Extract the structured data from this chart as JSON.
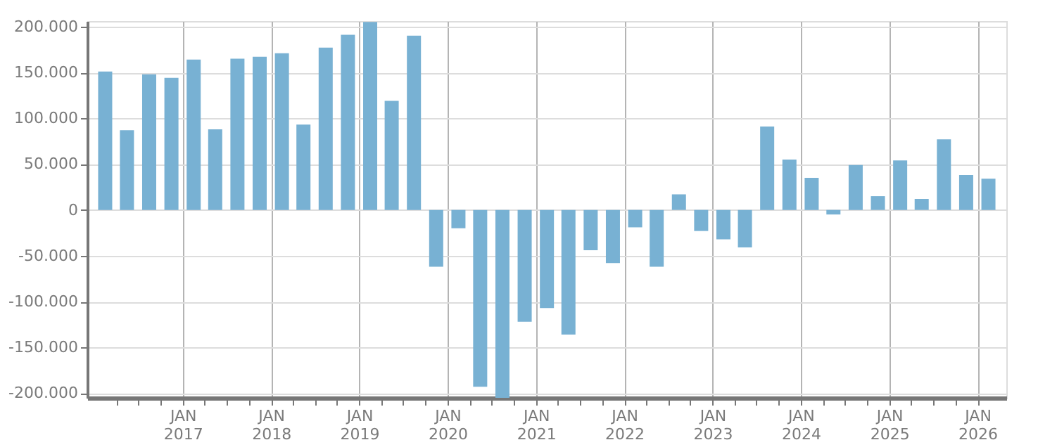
{
  "chart_data": {
    "type": "bar",
    "x": [
      "2016-02-15",
      "2016-05-15",
      "2016-08-15",
      "2016-11-15",
      "2017-02-15",
      "2017-05-15",
      "2017-08-15",
      "2017-11-15",
      "2018-02-15",
      "2018-05-15",
      "2018-08-15",
      "2018-11-15",
      "2019-02-15",
      "2019-05-15",
      "2019-08-15",
      "2019-11-15",
      "2020-02-15",
      "2020-05-15",
      "2020-08-15",
      "2020-11-15",
      "2021-02-15",
      "2021-05-15",
      "2021-08-15",
      "2021-11-15",
      "2022-02-15",
      "2022-05-15",
      "2022-08-15",
      "2022-11-15",
      "2023-02-15",
      "2023-05-15",
      "2023-08-15",
      "2023-11-15",
      "2024-02-15",
      "2024-05-15",
      "2024-08-15",
      "2024-11-15",
      "2025-02-15",
      "2025-05-15",
      "2025-08-15",
      "2025-11-15",
      "2026-02-15"
    ],
    "series": [
      {
        "color": "#78b1d3",
        "values": [
          151000,
          87000,
          148000,
          144000,
          164000,
          88000,
          165000,
          167000,
          171000,
          93000,
          177000,
          191000,
          205000,
          119000,
          190000,
          -62000,
          -20000,
          -193000,
          -205000,
          -122000,
          -107000,
          -136000,
          -44000,
          -58000,
          -19000,
          -62000,
          17000,
          -23000,
          -32000,
          -41000,
          91000,
          55000,
          35000,
          -5000,
          49000,
          15000,
          54000,
          12000,
          77000,
          38000,
          34000
        ]
      }
    ],
    "xlim": [
      "2016-01-01",
      "2026-04-01"
    ],
    "xticks": [
      {
        "value": "2016-04-01",
        "label": null
      },
      {
        "value": "2016-07-01",
        "label": null
      },
      {
        "value": "2016-10-01",
        "label": null
      },
      {
        "value": "2017-01-01",
        "label": "JAN 2017"
      },
      {
        "value": "2017-04-01",
        "label": null
      },
      {
        "value": "2017-07-01",
        "label": null
      },
      {
        "value": "2017-10-01",
        "label": null
      },
      {
        "value": "2018-01-01",
        "label": "JAN 2018"
      },
      {
        "value": "2018-04-01",
        "label": null
      },
      {
        "value": "2018-07-01",
        "label": null
      },
      {
        "value": "2018-10-01",
        "label": null
      },
      {
        "value": "2019-01-01",
        "label": "JAN 2019"
      },
      {
        "value": "2019-04-01",
        "label": null
      },
      {
        "value": "2019-07-01",
        "label": null
      },
      {
        "value": "2019-10-01",
        "label": null
      },
      {
        "value": "2020-01-01",
        "label": "JAN 2020"
      },
      {
        "value": "2020-04-01",
        "label": null
      },
      {
        "value": "2020-07-01",
        "label": null
      },
      {
        "value": "2020-10-01",
        "label": null
      },
      {
        "value": "2021-01-01",
        "label": "JAN 2021"
      },
      {
        "value": "2021-04-01",
        "label": null
      },
      {
        "value": "2021-07-01",
        "label": null
      },
      {
        "value": "2021-10-01",
        "label": null
      },
      {
        "value": "2022-01-01",
        "label": "JAN 2022"
      },
      {
        "value": "2022-04-01",
        "label": null
      },
      {
        "value": "2022-07-01",
        "label": null
      },
      {
        "value": "2022-10-01",
        "label": null
      },
      {
        "value": "2023-01-01",
        "label": "JAN 2023"
      },
      {
        "value": "2023-04-01",
        "label": null
      },
      {
        "value": "2023-07-01",
        "label": null
      },
      {
        "value": "2023-10-01",
        "label": null
      },
      {
        "value": "2024-01-01",
        "label": "JAN 2024"
      },
      {
        "value": "2024-04-01",
        "label": null
      },
      {
        "value": "2024-07-01",
        "label": null
      },
      {
        "value": "2024-10-01",
        "label": null
      },
      {
        "value": "2025-01-01",
        "label": "JAN 2025"
      },
      {
        "value": "2025-04-01",
        "label": null
      },
      {
        "value": "2025-07-01",
        "label": null
      },
      {
        "value": "2025-10-01",
        "label": null
      },
      {
        "value": "2026-01-01",
        "label": "JAN 2026"
      }
    ],
    "ylim": [
      -205000,
      206000
    ],
    "yticks": [
      {
        "value": -200000,
        "label": "-200.000"
      },
      {
        "value": -150000,
        "label": "-150.000"
      },
      {
        "value": -100000,
        "label": "-100.000"
      },
      {
        "value": -50000,
        "label": "-50.000"
      },
      0,
      {
        "value": 50000,
        "label": "50.000"
      },
      {
        "value": 100000,
        "label": "100.000"
      },
      {
        "value": 150000,
        "label": "150.000"
      },
      {
        "value": 200000,
        "label": "200.000"
      }
    ],
    "grid": true
  }
}
